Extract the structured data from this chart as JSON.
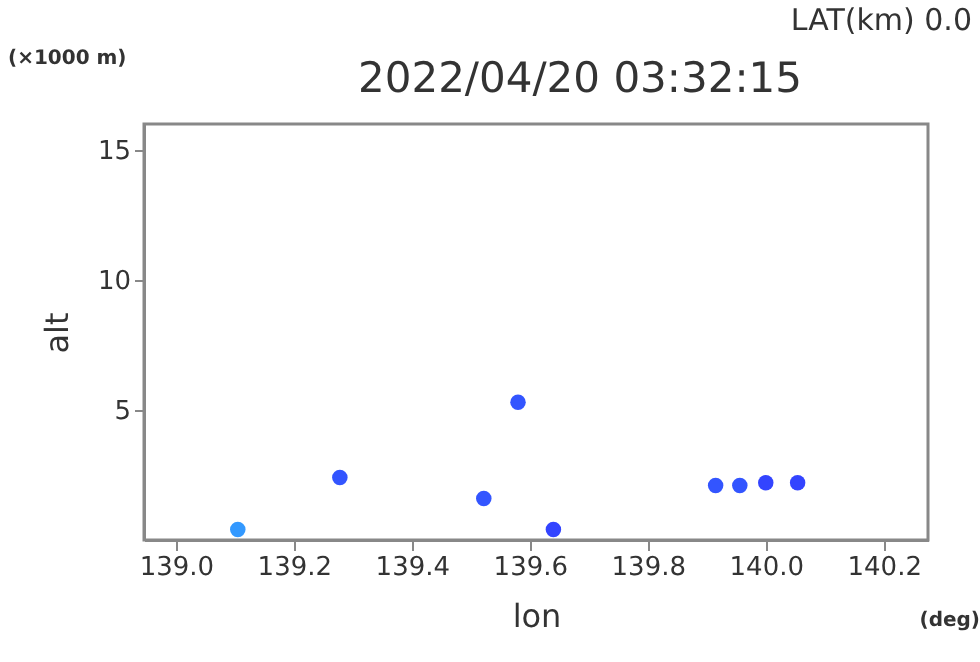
{
  "chart_data": {
    "type": "scatter",
    "title": "2022/04/20 03:32:15",
    "xlabel": "lon",
    "ylabel": "alt",
    "annotations": [
      "LAT(km) 0.0",
      "(×1000 m)",
      "(deg)"
    ],
    "x": [
      139.105,
      139.278,
      139.522,
      139.58,
      139.64,
      139.915,
      139.956,
      140.0,
      140.054
    ],
    "values": [
      0.4,
      2.4,
      1.6,
      5.3,
      0.4,
      2.1,
      2.1,
      2.2,
      2.2
    ],
    "colors": [
      "#3399ff",
      "#3355ff",
      "#3355ff",
      "#3355ff",
      "#3344ff",
      "#3355ff",
      "#3355ff",
      "#3344ff",
      "#3344ff"
    ],
    "xlim": [
      138.946,
      140.275
    ],
    "ylim": [
      0,
      16
    ],
    "xticks": [
      {
        "value": 139.0,
        "label": "139.0"
      },
      {
        "value": 139.2,
        "label": "139.2"
      },
      {
        "value": 139.4,
        "label": "139.4"
      },
      {
        "value": 139.6,
        "label": "139.6"
      },
      {
        "value": 139.8,
        "label": "139.8"
      },
      {
        "value": 140.0,
        "label": "140.0"
      },
      {
        "value": 140.2,
        "label": "140.2"
      }
    ],
    "yticks": [
      5,
      10,
      15
    ],
    "grid": false,
    "marker": "circle"
  }
}
